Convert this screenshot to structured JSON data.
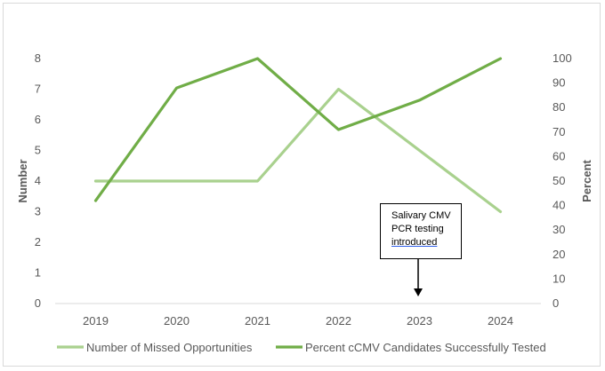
{
  "chart_data": {
    "type": "line",
    "categories": [
      "2019",
      "2020",
      "2021",
      "2022",
      "2023",
      "2024"
    ],
    "series": [
      {
        "name": "Number of Missed Opportunities",
        "axis": "left",
        "color": "#a9d18e",
        "values": [
          4,
          4,
          4,
          7,
          5,
          3
        ]
      },
      {
        "name": "Percent cCMV Candidates Successfully Tested",
        "axis": "right",
        "color": "#70ad47",
        "values": [
          42,
          88,
          100,
          71,
          83,
          100
        ]
      }
    ],
    "ylabel": "Number",
    "y2label": "Percent",
    "ylim": [
      0,
      8
    ],
    "y2lim": [
      0,
      100
    ],
    "yticks": [
      "0",
      "1",
      "2",
      "3",
      "4",
      "5",
      "6",
      "7",
      "8"
    ],
    "y2ticks": [
      "0",
      "10",
      "20",
      "30",
      "40",
      "50",
      "60",
      "70",
      "80",
      "90",
      "100"
    ],
    "grid": false,
    "legend_position": "bottom",
    "annotation": {
      "lines": [
        "Salivary CMV",
        "PCR testing",
        "introduced"
      ],
      "points_to": "2023"
    }
  }
}
